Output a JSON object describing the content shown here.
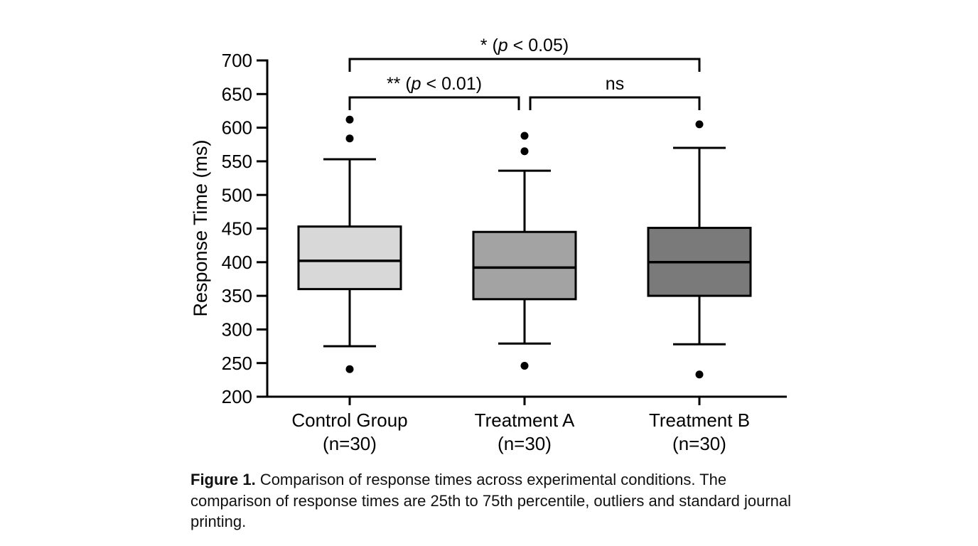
{
  "figure": {
    "caption_label": "Figure 1.",
    "caption_text": "Comparison of response times across experimental conditions. The comparison of response times are 25th to 75th percentile, outliers and standard journal printing."
  },
  "chart_data": {
    "type": "boxplot",
    "title": "",
    "xlabel": "",
    "ylabel": "Response Time (ms)",
    "ylim": [
      200,
      700
    ],
    "yticks": [
      200,
      250,
      300,
      350,
      400,
      450,
      500,
      550,
      600,
      650,
      700
    ],
    "grid": false,
    "stroke_color": "#000000",
    "groups": [
      {
        "label": "Control Group",
        "sublabel": "(n=30)",
        "fill": "#d8d8d8",
        "whisker_low": 275,
        "q1": 360,
        "median": 402,
        "q3": 453,
        "whisker_high": 553,
        "outliers": [
          241,
          584,
          612
        ]
      },
      {
        "label": "Treatment A",
        "sublabel": "(n=30)",
        "fill": "#a3a3a3",
        "whisker_low": 279,
        "q1": 345,
        "median": 392,
        "q3": 445,
        "whisker_high": 536,
        "outliers": [
          246,
          565,
          588
        ]
      },
      {
        "label": "Treatment B",
        "sublabel": "(n=30)",
        "fill": "#7a7a7a",
        "whisker_low": 278,
        "q1": 350,
        "median": 400,
        "q3": 451,
        "whisker_high": 570,
        "outliers": [
          233,
          605
        ]
      }
    ],
    "significance_brackets": [
      {
        "label": "* (p < 0.05)",
        "from": 0,
        "to": 2,
        "level": 0
      },
      {
        "label": "** (p < 0.01)",
        "from": 0,
        "to": 1,
        "level": 1
      },
      {
        "label": "ns",
        "from": 1,
        "to": 2,
        "level": 1
      }
    ]
  }
}
